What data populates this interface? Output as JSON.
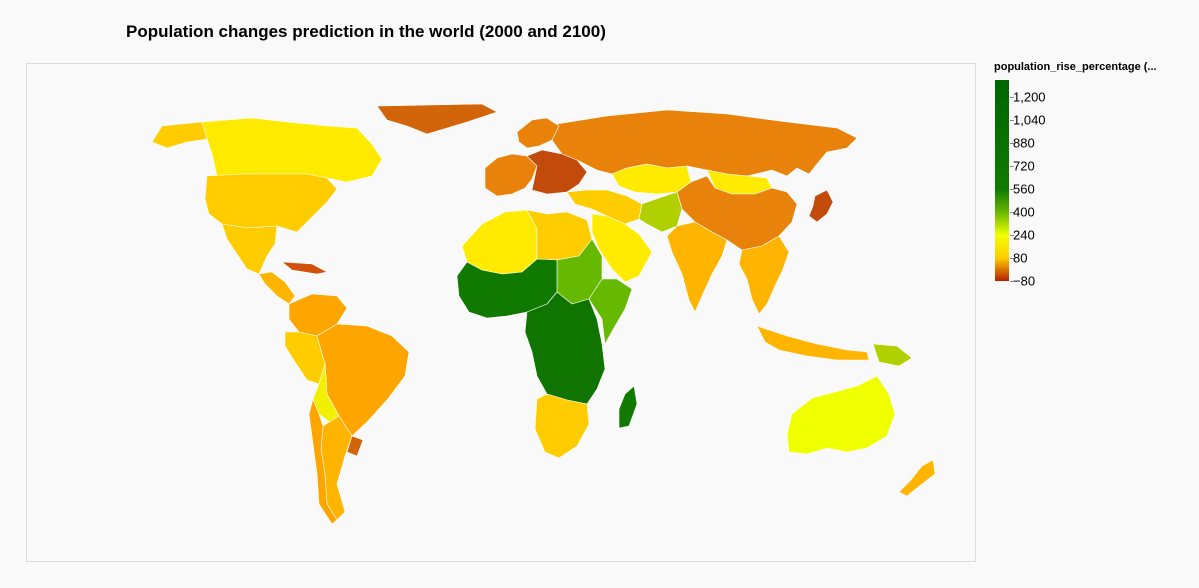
{
  "title": "Population changes prediction in the world (2000 and 2100)",
  "legend": {
    "title": "population_rise_percentage (...",
    "ticks": [
      "1,200",
      "1,040",
      "880",
      "720",
      "560",
      "400",
      "240",
      "80",
      "−80"
    ],
    "tick_values": [
      1200,
      1040,
      880,
      720,
      560,
      400,
      240,
      80,
      -80
    ],
    "min": -80,
    "max": 1320,
    "gradient_stops": [
      {
        "value": -80,
        "color": "#b32000"
      },
      {
        "value": 80,
        "color": "#ffcc00"
      },
      {
        "value": 240,
        "color": "#f0ff00"
      },
      {
        "value": 400,
        "color": "#66b800"
      },
      {
        "value": 560,
        "color": "#107a00"
      },
      {
        "value": 1320,
        "color": "#006600"
      }
    ]
  },
  "colors": {
    "ocean": "#f9f9f9",
    "decline_strong": "#b32000",
    "decline": "#d2500a",
    "stable": "#e8820a",
    "growth_low": "#ffa500",
    "growth_mid": "#ffcc00",
    "growth_yellow": "#f0f000",
    "growth_lime": "#b0d000",
    "growth_green": "#66b800",
    "growth_dark": "#107a00"
  },
  "regions": [
    {
      "name": "Greenland",
      "color": "#d2640a"
    },
    {
      "name": "Canada",
      "color": "#ffea00"
    },
    {
      "name": "Alaska",
      "color": "#ffcc00"
    },
    {
      "name": "United States",
      "color": "#ffcc00"
    },
    {
      "name": "Mexico",
      "color": "#ffcc00"
    },
    {
      "name": "Central America",
      "color": "#ffb400"
    },
    {
      "name": "Cuba",
      "color": "#d2500a"
    },
    {
      "name": "Colombia/Venezuela",
      "color": "#ffa500"
    },
    {
      "name": "Peru/Ecuador",
      "color": "#ffcc00"
    },
    {
      "name": "Brazil",
      "color": "#ffa500"
    },
    {
      "name": "Bolivia/Paraguay",
      "color": "#f0f000"
    },
    {
      "name": "Argentina",
      "color": "#ffb400"
    },
    {
      "name": "Chile",
      "color": "#ffa500"
    },
    {
      "name": "Uruguay",
      "color": "#d2640a"
    },
    {
      "name": "Russia",
      "color": "#e8820a"
    },
    {
      "name": "Europe West",
      "color": "#e8820a"
    },
    {
      "name": "Europe East",
      "color": "#c24a0a"
    },
    {
      "name": "Scandinavia",
      "color": "#e8820a"
    },
    {
      "name": "Kazakhstan",
      "color": "#ffea00"
    },
    {
      "name": "Mongolia",
      "color": "#ffea00"
    },
    {
      "name": "China",
      "color": "#e8820a"
    },
    {
      "name": "Japan",
      "color": "#c24a0a"
    },
    {
      "name": "India",
      "color": "#ffb400"
    },
    {
      "name": "Middle East",
      "color": "#ffcc00"
    },
    {
      "name": "Saudi Arabia",
      "color": "#ffea00"
    },
    {
      "name": "Afghanistan/Pakistan",
      "color": "#b0d000"
    },
    {
      "name": "Southeast Asia",
      "color": "#ffb400"
    },
    {
      "name": "Indonesia",
      "color": "#ffb400"
    },
    {
      "name": "Papua New Guinea",
      "color": "#b0d000"
    },
    {
      "name": "Australia",
      "color": "#f0ff00"
    },
    {
      "name": "New Zealand",
      "color": "#ffb400"
    },
    {
      "name": "North Africa",
      "color": "#ffea00"
    },
    {
      "name": "Egypt/Libya",
      "color": "#ffcc00"
    },
    {
      "name": "Sudan",
      "color": "#66b800"
    },
    {
      "name": "West Africa",
      "color": "#107a00"
    },
    {
      "name": "Central Africa",
      "color": "#0f7400"
    },
    {
      "name": "East Africa",
      "color": "#66b800"
    },
    {
      "name": "Southern Africa",
      "color": "#ffcc00"
    },
    {
      "name": "Madagascar",
      "color": "#107a00"
    }
  ]
}
